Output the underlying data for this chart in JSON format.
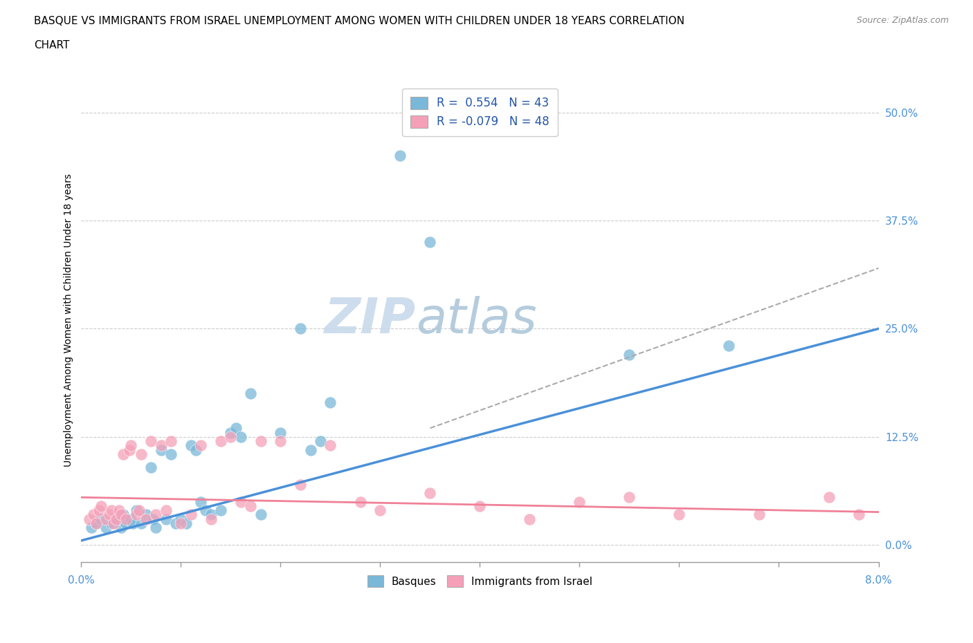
{
  "title_line1": "BASQUE VS IMMIGRANTS FROM ISRAEL UNEMPLOYMENT AMONG WOMEN WITH CHILDREN UNDER 18 YEARS CORRELATION",
  "title_line2": "CHART",
  "source": "Source: ZipAtlas.com",
  "ylabel": "Unemployment Among Women with Children Under 18 years",
  "ytick_vals": [
    0.0,
    12.5,
    25.0,
    37.5,
    50.0
  ],
  "xlim": [
    0.0,
    8.0
  ],
  "ylim": [
    -2.0,
    54.0
  ],
  "r1": 0.554,
  "n1": 43,
  "r2": -0.079,
  "n2": 48,
  "color_basque": "#7ab8d9",
  "color_israel": "#f5a0b8",
  "color_line1": "#4a90d9",
  "color_line2": "#f08098",
  "color_dashed": "#aaaaaa",
  "watermark_zip": "ZIP",
  "watermark_atlas": "atlas",
  "basque_x": [
    0.1,
    0.15,
    0.2,
    0.25,
    0.3,
    0.35,
    0.4,
    0.42,
    0.45,
    0.5,
    0.52,
    0.55,
    0.6,
    0.65,
    0.7,
    0.72,
    0.75,
    0.8,
    0.85,
    0.9,
    0.95,
    1.0,
    1.05,
    1.1,
    1.15,
    1.2,
    1.25,
    1.3,
    1.4,
    1.5,
    1.55,
    1.6,
    1.7,
    1.8,
    2.0,
    2.2,
    2.3,
    2.4,
    2.5,
    3.2,
    3.5,
    5.5,
    6.5
  ],
  "basque_y": [
    2.0,
    2.5,
    3.0,
    2.0,
    2.5,
    3.0,
    2.0,
    3.5,
    2.5,
    3.0,
    2.5,
    4.0,
    2.5,
    3.5,
    9.0,
    3.0,
    2.0,
    11.0,
    3.0,
    10.5,
    2.5,
    3.0,
    2.5,
    11.5,
    11.0,
    5.0,
    4.0,
    3.5,
    4.0,
    13.0,
    13.5,
    12.5,
    17.5,
    3.5,
    13.0,
    25.0,
    11.0,
    12.0,
    16.5,
    45.0,
    35.0,
    22.0,
    23.0
  ],
  "israel_x": [
    0.08,
    0.12,
    0.15,
    0.18,
    0.2,
    0.25,
    0.28,
    0.3,
    0.32,
    0.35,
    0.38,
    0.4,
    0.42,
    0.45,
    0.48,
    0.5,
    0.55,
    0.58,
    0.6,
    0.65,
    0.7,
    0.75,
    0.8,
    0.85,
    0.9,
    1.0,
    1.1,
    1.2,
    1.3,
    1.4,
    1.5,
    1.6,
    1.7,
    1.8,
    2.0,
    2.2,
    2.5,
    2.8,
    3.0,
    3.5,
    4.0,
    4.5,
    5.0,
    5.5,
    6.0,
    6.8,
    7.5,
    7.8
  ],
  "israel_y": [
    3.0,
    3.5,
    2.5,
    4.0,
    4.5,
    3.0,
    3.5,
    4.0,
    2.5,
    3.0,
    4.0,
    3.5,
    10.5,
    3.0,
    11.0,
    11.5,
    3.5,
    4.0,
    10.5,
    3.0,
    12.0,
    3.5,
    11.5,
    4.0,
    12.0,
    2.5,
    3.5,
    11.5,
    3.0,
    12.0,
    12.5,
    5.0,
    4.5,
    12.0,
    12.0,
    7.0,
    11.5,
    5.0,
    4.0,
    6.0,
    4.5,
    3.0,
    5.0,
    5.5,
    3.5,
    3.5,
    5.5,
    3.5
  ],
  "line1_x0": 0.0,
  "line1_y0": 0.5,
  "line1_x1": 8.0,
  "line1_y1": 25.0,
  "line2_x0": 0.0,
  "line2_y0": 5.5,
  "line2_x1": 8.0,
  "line2_y1": 3.8,
  "dash_x0": 3.5,
  "dash_y0": 13.5,
  "dash_x1": 8.0,
  "dash_y1": 32.0
}
